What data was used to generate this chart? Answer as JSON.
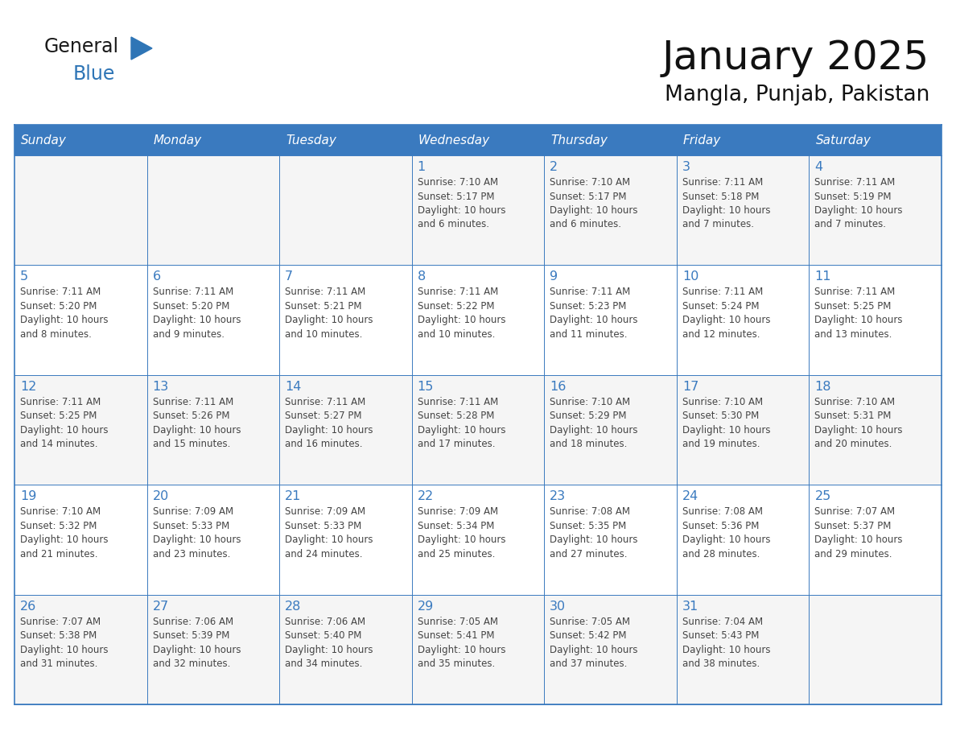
{
  "title": "January 2025",
  "subtitle": "Mangla, Punjab, Pakistan",
  "header_bg_color": "#3a7abf",
  "header_text_color": "#FFFFFF",
  "cell_bg_color": "#FFFFFF",
  "row_border_color": "#3a7abf",
  "outer_border_color": "#3a7abf",
  "day_number_color": "#3a7abf",
  "cell_text_color": "#444444",
  "days_of_week": [
    "Sunday",
    "Monday",
    "Tuesday",
    "Wednesday",
    "Thursday",
    "Friday",
    "Saturday"
  ],
  "logo_general_color": "#1a1a1a",
  "logo_blue_color": "#2E75B6",
  "logo_triangle_color": "#2E75B6",
  "title_color": "#111111",
  "subtitle_color": "#111111",
  "weeks": [
    [
      {
        "day": 0,
        "text": ""
      },
      {
        "day": 0,
        "text": ""
      },
      {
        "day": 0,
        "text": ""
      },
      {
        "day": 1,
        "text": "Sunrise: 7:10 AM\nSunset: 5:17 PM\nDaylight: 10 hours\nand 6 minutes."
      },
      {
        "day": 2,
        "text": "Sunrise: 7:10 AM\nSunset: 5:17 PM\nDaylight: 10 hours\nand 6 minutes."
      },
      {
        "day": 3,
        "text": "Sunrise: 7:11 AM\nSunset: 5:18 PM\nDaylight: 10 hours\nand 7 minutes."
      },
      {
        "day": 4,
        "text": "Sunrise: 7:11 AM\nSunset: 5:19 PM\nDaylight: 10 hours\nand 7 minutes."
      }
    ],
    [
      {
        "day": 5,
        "text": "Sunrise: 7:11 AM\nSunset: 5:20 PM\nDaylight: 10 hours\nand 8 minutes."
      },
      {
        "day": 6,
        "text": "Sunrise: 7:11 AM\nSunset: 5:20 PM\nDaylight: 10 hours\nand 9 minutes."
      },
      {
        "day": 7,
        "text": "Sunrise: 7:11 AM\nSunset: 5:21 PM\nDaylight: 10 hours\nand 10 minutes."
      },
      {
        "day": 8,
        "text": "Sunrise: 7:11 AM\nSunset: 5:22 PM\nDaylight: 10 hours\nand 10 minutes."
      },
      {
        "day": 9,
        "text": "Sunrise: 7:11 AM\nSunset: 5:23 PM\nDaylight: 10 hours\nand 11 minutes."
      },
      {
        "day": 10,
        "text": "Sunrise: 7:11 AM\nSunset: 5:24 PM\nDaylight: 10 hours\nand 12 minutes."
      },
      {
        "day": 11,
        "text": "Sunrise: 7:11 AM\nSunset: 5:25 PM\nDaylight: 10 hours\nand 13 minutes."
      }
    ],
    [
      {
        "day": 12,
        "text": "Sunrise: 7:11 AM\nSunset: 5:25 PM\nDaylight: 10 hours\nand 14 minutes."
      },
      {
        "day": 13,
        "text": "Sunrise: 7:11 AM\nSunset: 5:26 PM\nDaylight: 10 hours\nand 15 minutes."
      },
      {
        "day": 14,
        "text": "Sunrise: 7:11 AM\nSunset: 5:27 PM\nDaylight: 10 hours\nand 16 minutes."
      },
      {
        "day": 15,
        "text": "Sunrise: 7:11 AM\nSunset: 5:28 PM\nDaylight: 10 hours\nand 17 minutes."
      },
      {
        "day": 16,
        "text": "Sunrise: 7:10 AM\nSunset: 5:29 PM\nDaylight: 10 hours\nand 18 minutes."
      },
      {
        "day": 17,
        "text": "Sunrise: 7:10 AM\nSunset: 5:30 PM\nDaylight: 10 hours\nand 19 minutes."
      },
      {
        "day": 18,
        "text": "Sunrise: 7:10 AM\nSunset: 5:31 PM\nDaylight: 10 hours\nand 20 minutes."
      }
    ],
    [
      {
        "day": 19,
        "text": "Sunrise: 7:10 AM\nSunset: 5:32 PM\nDaylight: 10 hours\nand 21 minutes."
      },
      {
        "day": 20,
        "text": "Sunrise: 7:09 AM\nSunset: 5:33 PM\nDaylight: 10 hours\nand 23 minutes."
      },
      {
        "day": 21,
        "text": "Sunrise: 7:09 AM\nSunset: 5:33 PM\nDaylight: 10 hours\nand 24 minutes."
      },
      {
        "day": 22,
        "text": "Sunrise: 7:09 AM\nSunset: 5:34 PM\nDaylight: 10 hours\nand 25 minutes."
      },
      {
        "day": 23,
        "text": "Sunrise: 7:08 AM\nSunset: 5:35 PM\nDaylight: 10 hours\nand 27 minutes."
      },
      {
        "day": 24,
        "text": "Sunrise: 7:08 AM\nSunset: 5:36 PM\nDaylight: 10 hours\nand 28 minutes."
      },
      {
        "day": 25,
        "text": "Sunrise: 7:07 AM\nSunset: 5:37 PM\nDaylight: 10 hours\nand 29 minutes."
      }
    ],
    [
      {
        "day": 26,
        "text": "Sunrise: 7:07 AM\nSunset: 5:38 PM\nDaylight: 10 hours\nand 31 minutes."
      },
      {
        "day": 27,
        "text": "Sunrise: 7:06 AM\nSunset: 5:39 PM\nDaylight: 10 hours\nand 32 minutes."
      },
      {
        "day": 28,
        "text": "Sunrise: 7:06 AM\nSunset: 5:40 PM\nDaylight: 10 hours\nand 34 minutes."
      },
      {
        "day": 29,
        "text": "Sunrise: 7:05 AM\nSunset: 5:41 PM\nDaylight: 10 hours\nand 35 minutes."
      },
      {
        "day": 30,
        "text": "Sunrise: 7:05 AM\nSunset: 5:42 PM\nDaylight: 10 hours\nand 37 minutes."
      },
      {
        "day": 31,
        "text": "Sunrise: 7:04 AM\nSunset: 5:43 PM\nDaylight: 10 hours\nand 38 minutes."
      },
      {
        "day": 0,
        "text": ""
      }
    ]
  ]
}
